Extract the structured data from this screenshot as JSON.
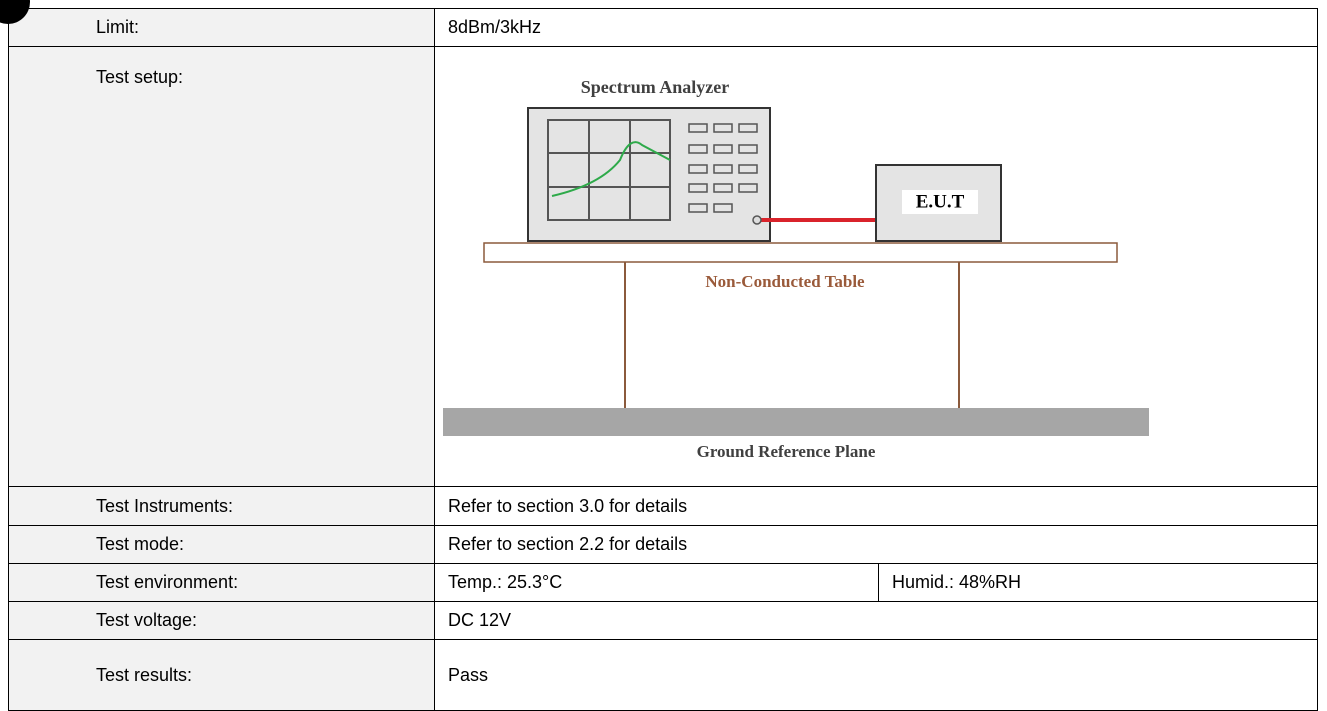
{
  "table": {
    "rows": [
      [
        "Limit:",
        "8dBm/3kHz"
      ],
      [
        "Test setup:"
      ],
      [
        "Test Instruments:",
        "Refer to section 3.0 for details"
      ],
      [
        "Test mode:",
        "Refer to section 2.2 for details"
      ],
      [
        "Test environment:",
        "Temp.: 25.3°C",
        "Humid.: 48%RH"
      ],
      [
        "Test voltage:",
        "DC 12V"
      ],
      [
        "Test results:",
        "Pass"
      ]
    ]
  },
  "diagram": {
    "analyzer": "Spectrum Analyzer",
    "eut": "E.U.T",
    "table": "Non-Conducted Table",
    "ground": "Ground Reference Plane"
  }
}
